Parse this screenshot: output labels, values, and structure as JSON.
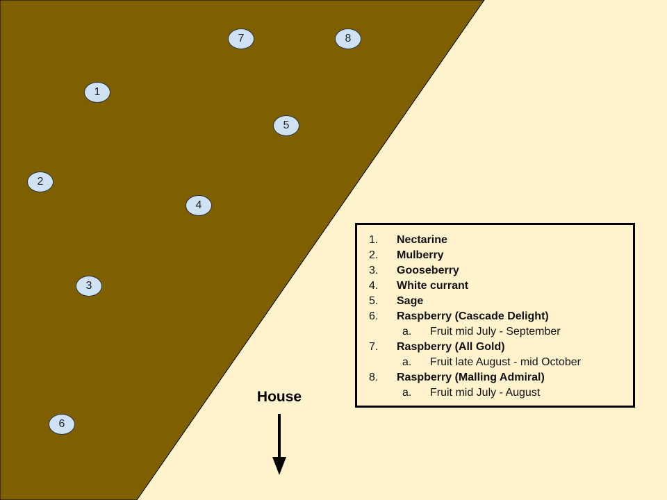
{
  "colors": {
    "background": "#fff2cc",
    "bed": "#7f6000",
    "marker_fill": "#cfe2f3",
    "marker_border": "#2b3440",
    "text": "#000000"
  },
  "markers": [
    {
      "num": "1"
    },
    {
      "num": "2"
    },
    {
      "num": "3"
    },
    {
      "num": "4"
    },
    {
      "num": "5"
    },
    {
      "num": "6"
    },
    {
      "num": "7"
    },
    {
      "num": "8"
    }
  ],
  "house": {
    "label": "House",
    "arrow_icon": "arrow-down-icon"
  },
  "legend": {
    "items": [
      {
        "num": "1.",
        "label": "Nectarine"
      },
      {
        "num": "2.",
        "label": "Mulberry"
      },
      {
        "num": "3.",
        "label": "Gooseberry"
      },
      {
        "num": "4.",
        "label": "White currant"
      },
      {
        "num": "5.",
        "label": "Sage"
      },
      {
        "num": "6.",
        "label": "Raspberry (Cascade Delight)",
        "sub_num": "a.",
        "sub": "Fruit mid July - September"
      },
      {
        "num": "7.",
        "label": "Raspberry (All Gold)",
        "sub_num": "a.",
        "sub": "Fruit late August - mid October"
      },
      {
        "num": "8.",
        "label": "Raspberry (Malling Admiral)",
        "sub_num": "a.",
        "sub": "Fruit mid July - August"
      }
    ]
  }
}
